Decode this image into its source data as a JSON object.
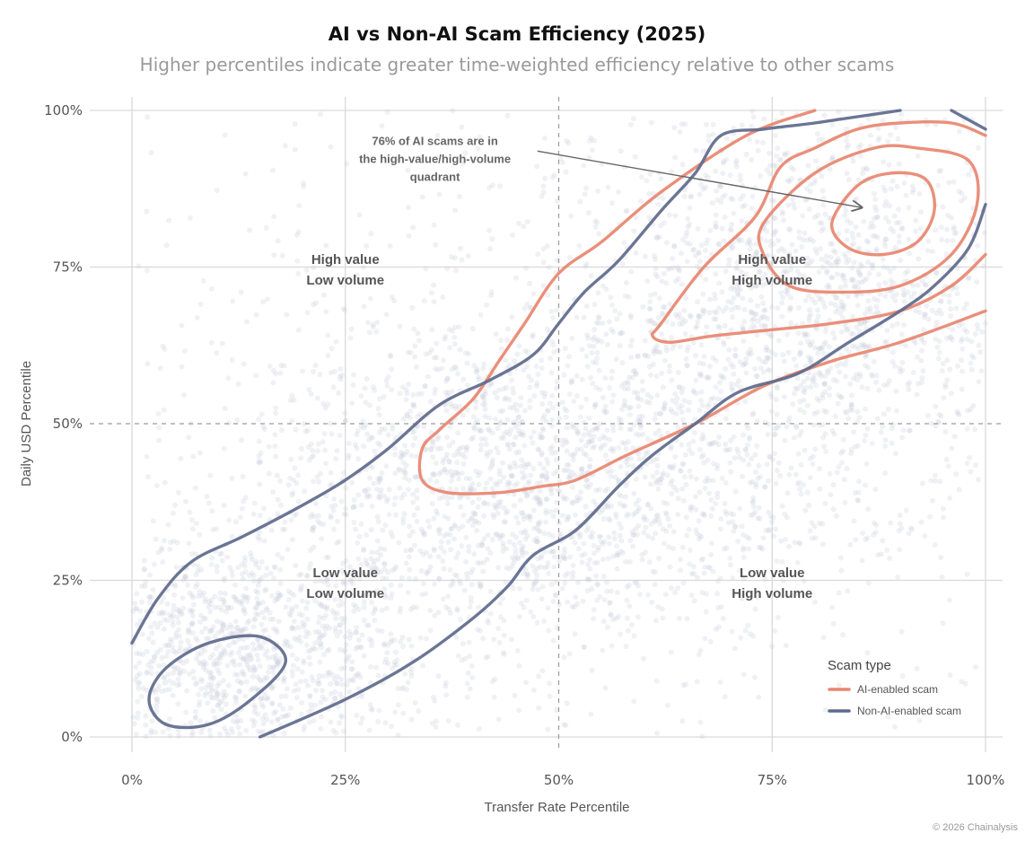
{
  "chart_data": {
    "type": "scatter",
    "title": "AI vs Non-AI Scam Efficiency (2025)",
    "subtitle": "Higher percentiles indicate greater time-weighted efficiency relative to other scams",
    "xlabel": "Transfer Rate Percentile",
    "ylabel": "Daily USD Percentile",
    "xlim": [
      0,
      100
    ],
    "ylim": [
      0,
      100
    ],
    "x_ticks": [
      0,
      25,
      50,
      75,
      100
    ],
    "y_ticks": [
      0,
      25,
      50,
      75,
      100
    ],
    "x_tick_labels": [
      "0%",
      "25%",
      "50%",
      "75%",
      "100%"
    ],
    "y_tick_labels": [
      "0%",
      "25%",
      "50%",
      "75%",
      "100%"
    ],
    "grid": true,
    "reference_lines": {
      "x": 50,
      "y": 50,
      "style": "dashed"
    },
    "legend": {
      "title": "Scam type",
      "placement": "bottom-right",
      "items": [
        {
          "label": "AI-enabled scam",
          "color": "#e8866f"
        },
        {
          "label": "Non-AI-enabled scam",
          "color": "#5e6a8c"
        }
      ]
    },
    "points_color": "#c9cbdc",
    "quadrant_labels": [
      {
        "x": 25,
        "y": 75.5,
        "lines": [
          "High value",
          "Low volume"
        ]
      },
      {
        "x": 75,
        "y": 75.5,
        "lines": [
          "High value",
          "High volume"
        ]
      },
      {
        "x": 25,
        "y": 25.5,
        "lines": [
          "Low value",
          "Low volume"
        ]
      },
      {
        "x": 75,
        "y": 25.5,
        "lines": [
          "Low value",
          "High volume"
        ]
      }
    ],
    "annotation": {
      "lines": [
        "76% of AI scams are in",
        "the high-value/high-volume",
        "quadrant"
      ],
      "text_x": 35.5,
      "text_y": 94.5,
      "arrow_from": [
        47.5,
        93.5
      ],
      "arrow_to": [
        85.5,
        84.5
      ]
    },
    "contours": [
      {
        "series": "AI-enabled scam",
        "color": "#e8866f",
        "closed": false,
        "points": [
          [
            80,
            100
          ],
          [
            72,
            96
          ],
          [
            62,
            87
          ],
          [
            55,
            79
          ],
          [
            50,
            74
          ],
          [
            46,
            66
          ],
          [
            43,
            60
          ],
          [
            40,
            54
          ],
          [
            36,
            49
          ],
          [
            34,
            46
          ],
          [
            34,
            41
          ],
          [
            37,
            39
          ],
          [
            43,
            39
          ],
          [
            48,
            40
          ],
          [
            52,
            41
          ],
          [
            58,
            45
          ],
          [
            66,
            50
          ],
          [
            74,
            56
          ],
          [
            82,
            60
          ],
          [
            90,
            63
          ],
          [
            100,
            68
          ]
        ]
      },
      {
        "series": "AI-enabled scam",
        "color": "#e8866f",
        "closed": false,
        "points": [
          [
            100,
            96
          ],
          [
            96,
            98
          ],
          [
            90,
            98
          ],
          [
            85,
            97
          ],
          [
            80,
            94
          ],
          [
            76,
            91
          ],
          [
            73,
            83
          ],
          [
            67,
            75
          ],
          [
            62,
            66
          ],
          [
            61,
            64
          ],
          [
            63,
            63
          ],
          [
            68,
            64
          ],
          [
            75,
            65
          ],
          [
            82,
            66
          ],
          [
            90,
            68
          ],
          [
            96,
            72
          ],
          [
            100,
            77
          ]
        ]
      },
      {
        "series": "AI-enabled scam",
        "color": "#e8866f",
        "closed": true,
        "points": [
          [
            74,
            82
          ],
          [
            80,
            90
          ],
          [
            87,
            94
          ],
          [
            92,
            94
          ],
          [
            98,
            92
          ],
          [
            99,
            85
          ],
          [
            96,
            77
          ],
          [
            90,
            72
          ],
          [
            83,
            71
          ],
          [
            77,
            72
          ],
          [
            74,
            77
          ]
        ]
      },
      {
        "series": "AI-enabled scam",
        "color": "#e8866f",
        "closed": true,
        "points": [
          [
            82,
            82
          ],
          [
            85,
            88
          ],
          [
            89,
            90
          ],
          [
            93,
            89
          ],
          [
            94,
            84
          ],
          [
            92,
            79
          ],
          [
            88,
            77
          ],
          [
            84,
            78
          ]
        ]
      },
      {
        "series": "Non-AI-enabled scam",
        "color": "#5e6a8c",
        "closed": false,
        "points": [
          [
            0,
            15
          ],
          [
            3,
            22
          ],
          [
            7,
            28
          ],
          [
            13,
            32
          ],
          [
            20,
            37
          ],
          [
            25,
            41
          ],
          [
            30,
            46
          ],
          [
            36,
            53
          ],
          [
            42,
            57
          ],
          [
            47,
            61
          ],
          [
            50,
            66
          ],
          [
            53,
            71
          ],
          [
            57,
            76
          ],
          [
            62,
            84
          ],
          [
            66,
            90
          ],
          [
            69,
            96
          ],
          [
            74,
            97
          ],
          [
            80,
            98
          ],
          [
            85,
            99
          ],
          [
            90,
            100
          ]
        ]
      },
      {
        "series": "Non-AI-enabled scam",
        "color": "#5e6a8c",
        "closed": false,
        "points": [
          [
            96,
            100
          ],
          [
            100,
            97
          ]
        ]
      },
      {
        "series": "Non-AI-enabled scam",
        "color": "#5e6a8c",
        "closed": false,
        "points": [
          [
            15,
            0
          ],
          [
            25,
            6
          ],
          [
            33,
            12
          ],
          [
            40,
            19
          ],
          [
            44,
            24
          ],
          [
            47,
            29
          ],
          [
            52,
            33
          ],
          [
            57,
            40
          ],
          [
            61,
            45
          ],
          [
            66,
            50
          ],
          [
            71,
            55
          ],
          [
            78,
            58
          ],
          [
            84,
            63
          ],
          [
            90,
            68
          ],
          [
            94,
            72
          ],
          [
            98,
            78
          ],
          [
            100,
            85
          ]
        ]
      },
      {
        "series": "Non-AI-enabled scam",
        "color": "#5e6a8c",
        "closed": true,
        "points": [
          [
            2,
            6
          ],
          [
            4,
            11
          ],
          [
            9,
            15
          ],
          [
            15,
            16
          ],
          [
            18,
            12
          ],
          [
            14,
            6
          ],
          [
            9,
            2
          ],
          [
            4,
            2
          ]
        ]
      }
    ],
    "density_clusters": [
      {
        "x": 12,
        "y": 12,
        "sx": 11,
        "sy": 10,
        "n": 1200
      },
      {
        "x": 45,
        "y": 40,
        "sx": 16,
        "sy": 14,
        "n": 1800
      },
      {
        "x": 80,
        "y": 70,
        "sx": 14,
        "sy": 16,
        "n": 1600
      },
      {
        "x": 50,
        "y": 50,
        "sx": 35,
        "sy": 35,
        "n": 900
      }
    ]
  },
  "credit": "© 2026 Chainalysis"
}
